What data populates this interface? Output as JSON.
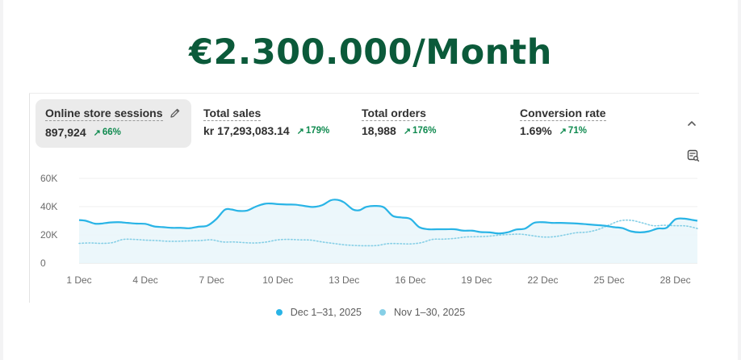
{
  "headline": "€2.300.000/Month",
  "metrics": [
    {
      "label": "Online store sessions",
      "value": "897,924",
      "delta": "66%",
      "active": true
    },
    {
      "label": "Total sales",
      "value": "kr 17,293,083.14",
      "delta": "179%",
      "active": false
    },
    {
      "label": "Total orders",
      "value": "18,988",
      "delta": "176%",
      "active": false
    },
    {
      "label": "Conversion rate",
      "value": "1.69%",
      "delta": "71%",
      "active": false
    }
  ],
  "icons": {
    "edit": "pencil-icon",
    "collapse": "chevron-up-icon",
    "notes": "notes-search-icon",
    "delta": "arrow-up-right-icon"
  },
  "colors": {
    "headline": "#0b5a3a",
    "current": "#29b4e6",
    "previous": "#86cfe6",
    "positive": "#0f8a4f"
  },
  "chart_data": {
    "type": "line",
    "ylim": [
      0,
      60000
    ],
    "y_ticks": [
      "60K",
      "40K",
      "20K",
      "0"
    ],
    "y_tick_values": [
      60000,
      40000,
      20000,
      0
    ],
    "x_ticks": [
      "1 Dec",
      "4 Dec",
      "7 Dec",
      "10 Dec",
      "13 Dec",
      "16 Dec",
      "19 Dec",
      "22 Dec",
      "25 Dec",
      "28 Dec"
    ],
    "x_tick_days": [
      1,
      4,
      7,
      10,
      13,
      16,
      19,
      22,
      25,
      28
    ],
    "x_range": [
      1,
      29
    ],
    "grid": true,
    "legend_position": "bottom",
    "series": [
      {
        "name": "Dec 1–31, 2025",
        "style": "solid",
        "x": [
          1,
          1.3,
          1.7,
          2,
          2.4,
          2.8,
          3.2,
          3.6,
          4,
          4.4,
          4.8,
          5.2,
          5.6,
          6,
          6.4,
          6.8,
          7.2,
          7.6,
          7.9,
          8.2,
          8.6,
          9,
          9.4,
          9.7,
          10,
          10.4,
          10.8,
          11.2,
          11.6,
          12,
          12.4,
          12.7,
          13,
          13.4,
          13.7,
          14,
          14.4,
          14.8,
          15.2,
          15.6,
          16,
          16.4,
          16.8,
          17.2,
          17.6,
          18,
          18.4,
          18.8,
          19.2,
          19.6,
          20,
          20.4,
          20.8,
          21.2,
          21.6,
          22,
          22.4,
          22.8,
          23.2,
          23.6,
          24,
          24.4,
          24.8,
          25.2,
          25.6,
          26,
          26.4,
          26.8,
          27.2,
          27.6,
          28,
          28.4,
          28.8,
          29
        ],
        "y": [
          30500,
          30000,
          28000,
          28000,
          28800,
          29000,
          28500,
          28000,
          27800,
          26000,
          25500,
          25000,
          25000,
          24700,
          25800,
          26500,
          31000,
          37800,
          38000,
          37000,
          37200,
          40000,
          42000,
          42200,
          41800,
          41500,
          41400,
          40500,
          39800,
          41000,
          44500,
          44800,
          43000,
          38000,
          37500,
          39800,
          40500,
          39500,
          33500,
          32300,
          31300,
          25500,
          24000,
          24000,
          24000,
          24000,
          23000,
          23000,
          22000,
          21800,
          21000,
          21800,
          23800,
          24500,
          28500,
          29000,
          28500,
          28500,
          28300,
          28000,
          27500,
          27000,
          26500,
          25500,
          24800,
          22500,
          21800,
          22500,
          24500,
          25000,
          31000,
          31500,
          30500,
          30000
        ]
      },
      {
        "name": "Nov 1–30, 2025",
        "style": "dotted",
        "x": [
          1,
          1.5,
          2,
          2.5,
          3,
          3.5,
          4,
          4.5,
          5,
          5.5,
          6,
          6.5,
          7,
          7.5,
          8,
          8.5,
          9,
          9.5,
          10,
          10.5,
          11,
          11.5,
          12,
          12.5,
          13,
          13.5,
          14,
          14.5,
          15,
          15.5,
          16,
          16.5,
          17,
          17.5,
          18,
          18.5,
          19,
          19.5,
          20,
          20.5,
          21,
          21.5,
          22,
          22.5,
          23,
          23.5,
          24,
          24.5,
          25,
          25.5,
          26,
          26.5,
          27,
          27.5,
          28,
          28.5,
          29
        ],
        "y": [
          14000,
          14300,
          14000,
          14500,
          16800,
          16800,
          16300,
          16000,
          15500,
          15500,
          15800,
          16000,
          16500,
          15000,
          15000,
          14500,
          14300,
          15000,
          16500,
          16800,
          16500,
          16300,
          15000,
          14000,
          13000,
          12500,
          12300,
          12500,
          13800,
          13800,
          13600,
          14500,
          16800,
          17000,
          17500,
          18500,
          18700,
          19000,
          19800,
          20300,
          20500,
          19500,
          18500,
          18700,
          20000,
          21500,
          22000,
          23800,
          27000,
          30000,
          30300,
          28500,
          26500,
          26800,
          26500,
          26300,
          24500
        ]
      }
    ]
  }
}
